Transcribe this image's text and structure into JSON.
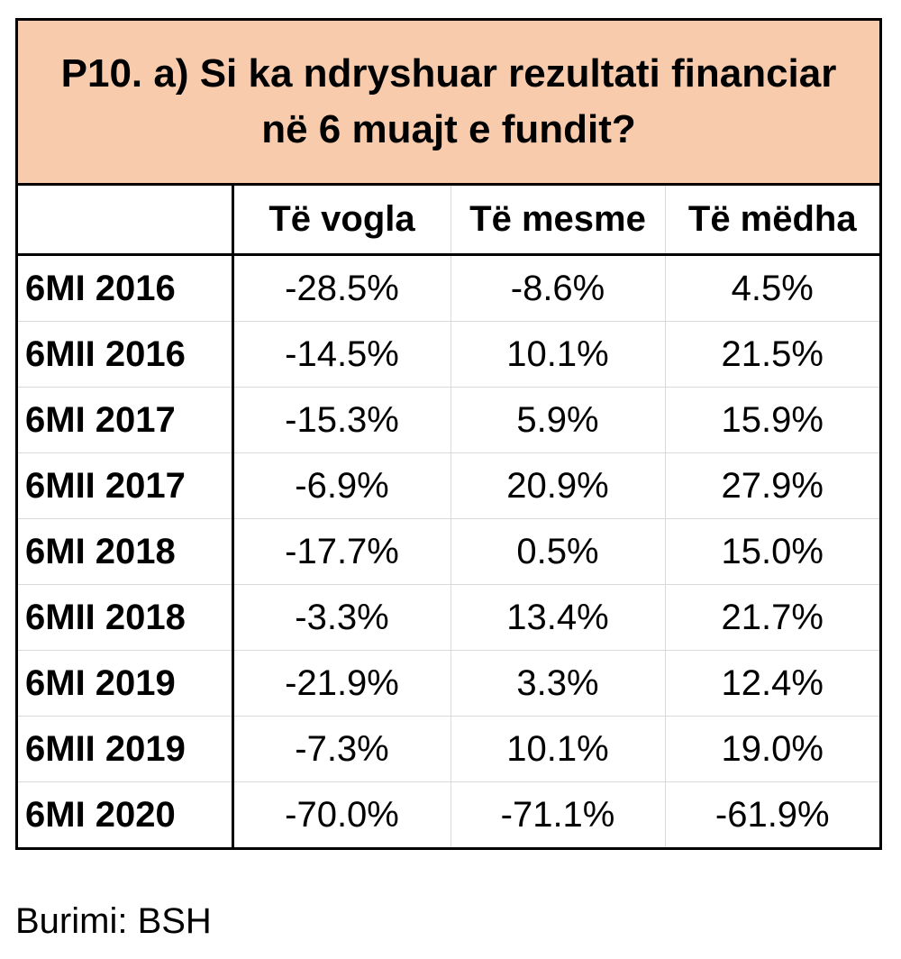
{
  "title_line1": "P10. a) Si ka ndryshuar rezultati financiar",
  "title_line2": "në 6 muajt e fundit?",
  "columns": [
    "",
    "Të vogla",
    "Të mesme",
    "Të mëdha"
  ],
  "rows": [
    {
      "label": "6MI 2016",
      "values": [
        "-28.5%",
        "-8.6%",
        "4.5%"
      ]
    },
    {
      "label": "6MII 2016",
      "values": [
        "-14.5%",
        "10.1%",
        "21.5%"
      ]
    },
    {
      "label": "6MI 2017",
      "values": [
        "-15.3%",
        "5.9%",
        "15.9%"
      ]
    },
    {
      "label": "6MII 2017",
      "values": [
        "-6.9%",
        "20.9%",
        "27.9%"
      ]
    },
    {
      "label": "6MI 2018",
      "values": [
        "-17.7%",
        "0.5%",
        "15.0%"
      ]
    },
    {
      "label": "6MII 2018",
      "values": [
        "-3.3%",
        "13.4%",
        "21.7%"
      ]
    },
    {
      "label": "6MI 2019",
      "values": [
        "-21.9%",
        "3.3%",
        "12.4%"
      ]
    },
    {
      "label": "6MII 2019",
      "values": [
        "-7.3%",
        "10.1%",
        "19.0%"
      ]
    },
    {
      "label": "6MI 2020",
      "values": [
        "-70.0%",
        "-71.1%",
        "-61.9%"
      ]
    }
  ],
  "source": "Burimi: BSH",
  "colors": {
    "title_bg": "#f8cbad",
    "border": "#000000",
    "gridline": "#d9d9d9"
  }
}
